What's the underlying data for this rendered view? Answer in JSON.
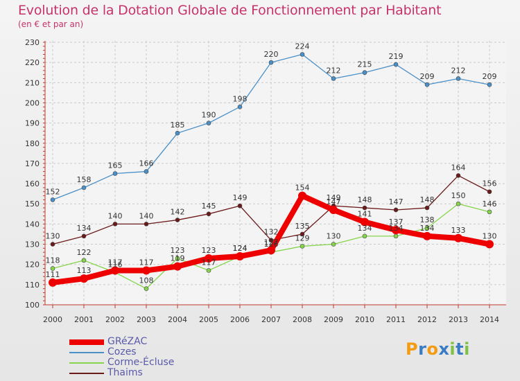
{
  "title": "Evolution de la Dotation Globale de Fonctionnement par Habitant",
  "subtitle": "(en € et par an)",
  "logo": {
    "letters": [
      "P",
      "r",
      "o",
      "x",
      "i",
      "t",
      "i"
    ],
    "colors": [
      "#f39c12",
      "#3a7cc4",
      "#f39c12",
      "#3a7cc4",
      "#7cc243",
      "#3a7cc4",
      "#7cc243"
    ]
  },
  "chart_data": {
    "type": "line",
    "title": "Evolution de la Dotation Globale de Fonctionnement par Habitant",
    "ylabel": "(en € et par an)",
    "ylim": [
      100,
      230
    ],
    "yticks": [
      100,
      110,
      120,
      130,
      140,
      150,
      160,
      170,
      180,
      190,
      200,
      210,
      220,
      230
    ],
    "x": [
      "2000",
      "2001",
      "2002",
      "2003",
      "2004",
      "2005",
      "2006",
      "2007",
      "2008",
      "2009",
      "2010",
      "2011",
      "2012",
      "2013",
      "2014"
    ],
    "series": [
      {
        "name": "Cozes",
        "color": "#4a90c8",
        "values": [
          152,
          158,
          165,
          166,
          185,
          190,
          198,
          220,
          224,
          212,
          215,
          219,
          209,
          212,
          209
        ]
      },
      {
        "name": "Corme-Écluse",
        "color": "#86d44c",
        "values": [
          118,
          122,
          116,
          108,
          123,
          117,
          124,
          126,
          129,
          130,
          134,
          134,
          138,
          150,
          146
        ]
      },
      {
        "name": "Thaims",
        "color": "#6b1a1a",
        "values": [
          130,
          134,
          140,
          140,
          142,
          145,
          149,
          132,
          135,
          149,
          148,
          147,
          148,
          164,
          156
        ]
      },
      {
        "name": "GRéZAC",
        "color": "#ee0000",
        "values": [
          111,
          113,
          117,
          117,
          119,
          123,
          124,
          127,
          154,
          147,
          141,
          137,
          134,
          133,
          130
        ],
        "bold": true
      }
    ],
    "legend": [
      "GRéZAC",
      "Cozes",
      "Corme-Écluse",
      "Thaims"
    ]
  }
}
